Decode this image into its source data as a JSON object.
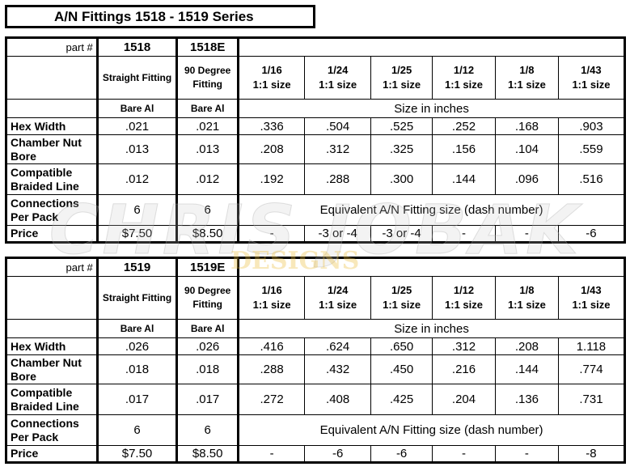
{
  "title": "A/N Fittings 1518 - 1519 Series",
  "labels": {
    "part": "part #",
    "hex_width": "Hex Width",
    "chamber_nut_bore": "Chamber Nut Bore",
    "compatible_braided_line": "Compatible Braided Line",
    "connections_per_pack": "Connections Per Pack",
    "price": "Price",
    "size_in_inches": "Size in inches",
    "equivalent": "Equivalent A/N Fitting size (dash number)",
    "straight_fitting": "Straight Fitting",
    "ninety_degree_fitting": "90 Degree Fitting",
    "bare_al": "Bare Al",
    "scale_suffix": "1:1 size"
  },
  "scales": [
    "1/16",
    "1/24",
    "1/25",
    "1/12",
    "1/8",
    "1/43"
  ],
  "tables": [
    {
      "part_a": "1518",
      "part_b": "1518E",
      "hex": {
        "a": ".021",
        "b": ".021",
        "scales": [
          ".336",
          ".504",
          ".525",
          ".252",
          ".168",
          ".903"
        ]
      },
      "bore": {
        "a": ".013",
        "b": ".013",
        "scales": [
          ".208",
          ".312",
          ".325",
          ".156",
          ".104",
          ".559"
        ]
      },
      "line": {
        "a": ".012",
        "b": ".012",
        "scales": [
          ".192",
          ".288",
          ".300",
          ".144",
          ".096",
          ".516"
        ]
      },
      "conn": {
        "a": "6",
        "b": "6"
      },
      "price": {
        "a": "$7.50",
        "b": "$8.50",
        "scales": [
          "-",
          "-3 or -4",
          "-3 or -4",
          "-",
          "-",
          "-6"
        ]
      }
    },
    {
      "part_a": "1519",
      "part_b": "1519E",
      "hex": {
        "a": ".026",
        "b": ".026",
        "scales": [
          ".416",
          ".624",
          ".650",
          ".312",
          ".208",
          "1.118"
        ]
      },
      "bore": {
        "a": ".018",
        "b": ".018",
        "scales": [
          ".288",
          ".432",
          ".450",
          ".216",
          ".144",
          ".774"
        ]
      },
      "line": {
        "a": ".017",
        "b": ".017",
        "scales": [
          ".272",
          ".408",
          ".425",
          ".204",
          ".136",
          ".731"
        ]
      },
      "conn": {
        "a": "6",
        "b": "6"
      },
      "price": {
        "a": "$7.50",
        "b": "$8.50",
        "scales": [
          "-",
          "-6",
          "-6",
          "-",
          "-",
          "-8"
        ]
      }
    }
  ],
  "watermark": {
    "text": "CHRIS JOBAK",
    "logo": "DESIGNS"
  }
}
